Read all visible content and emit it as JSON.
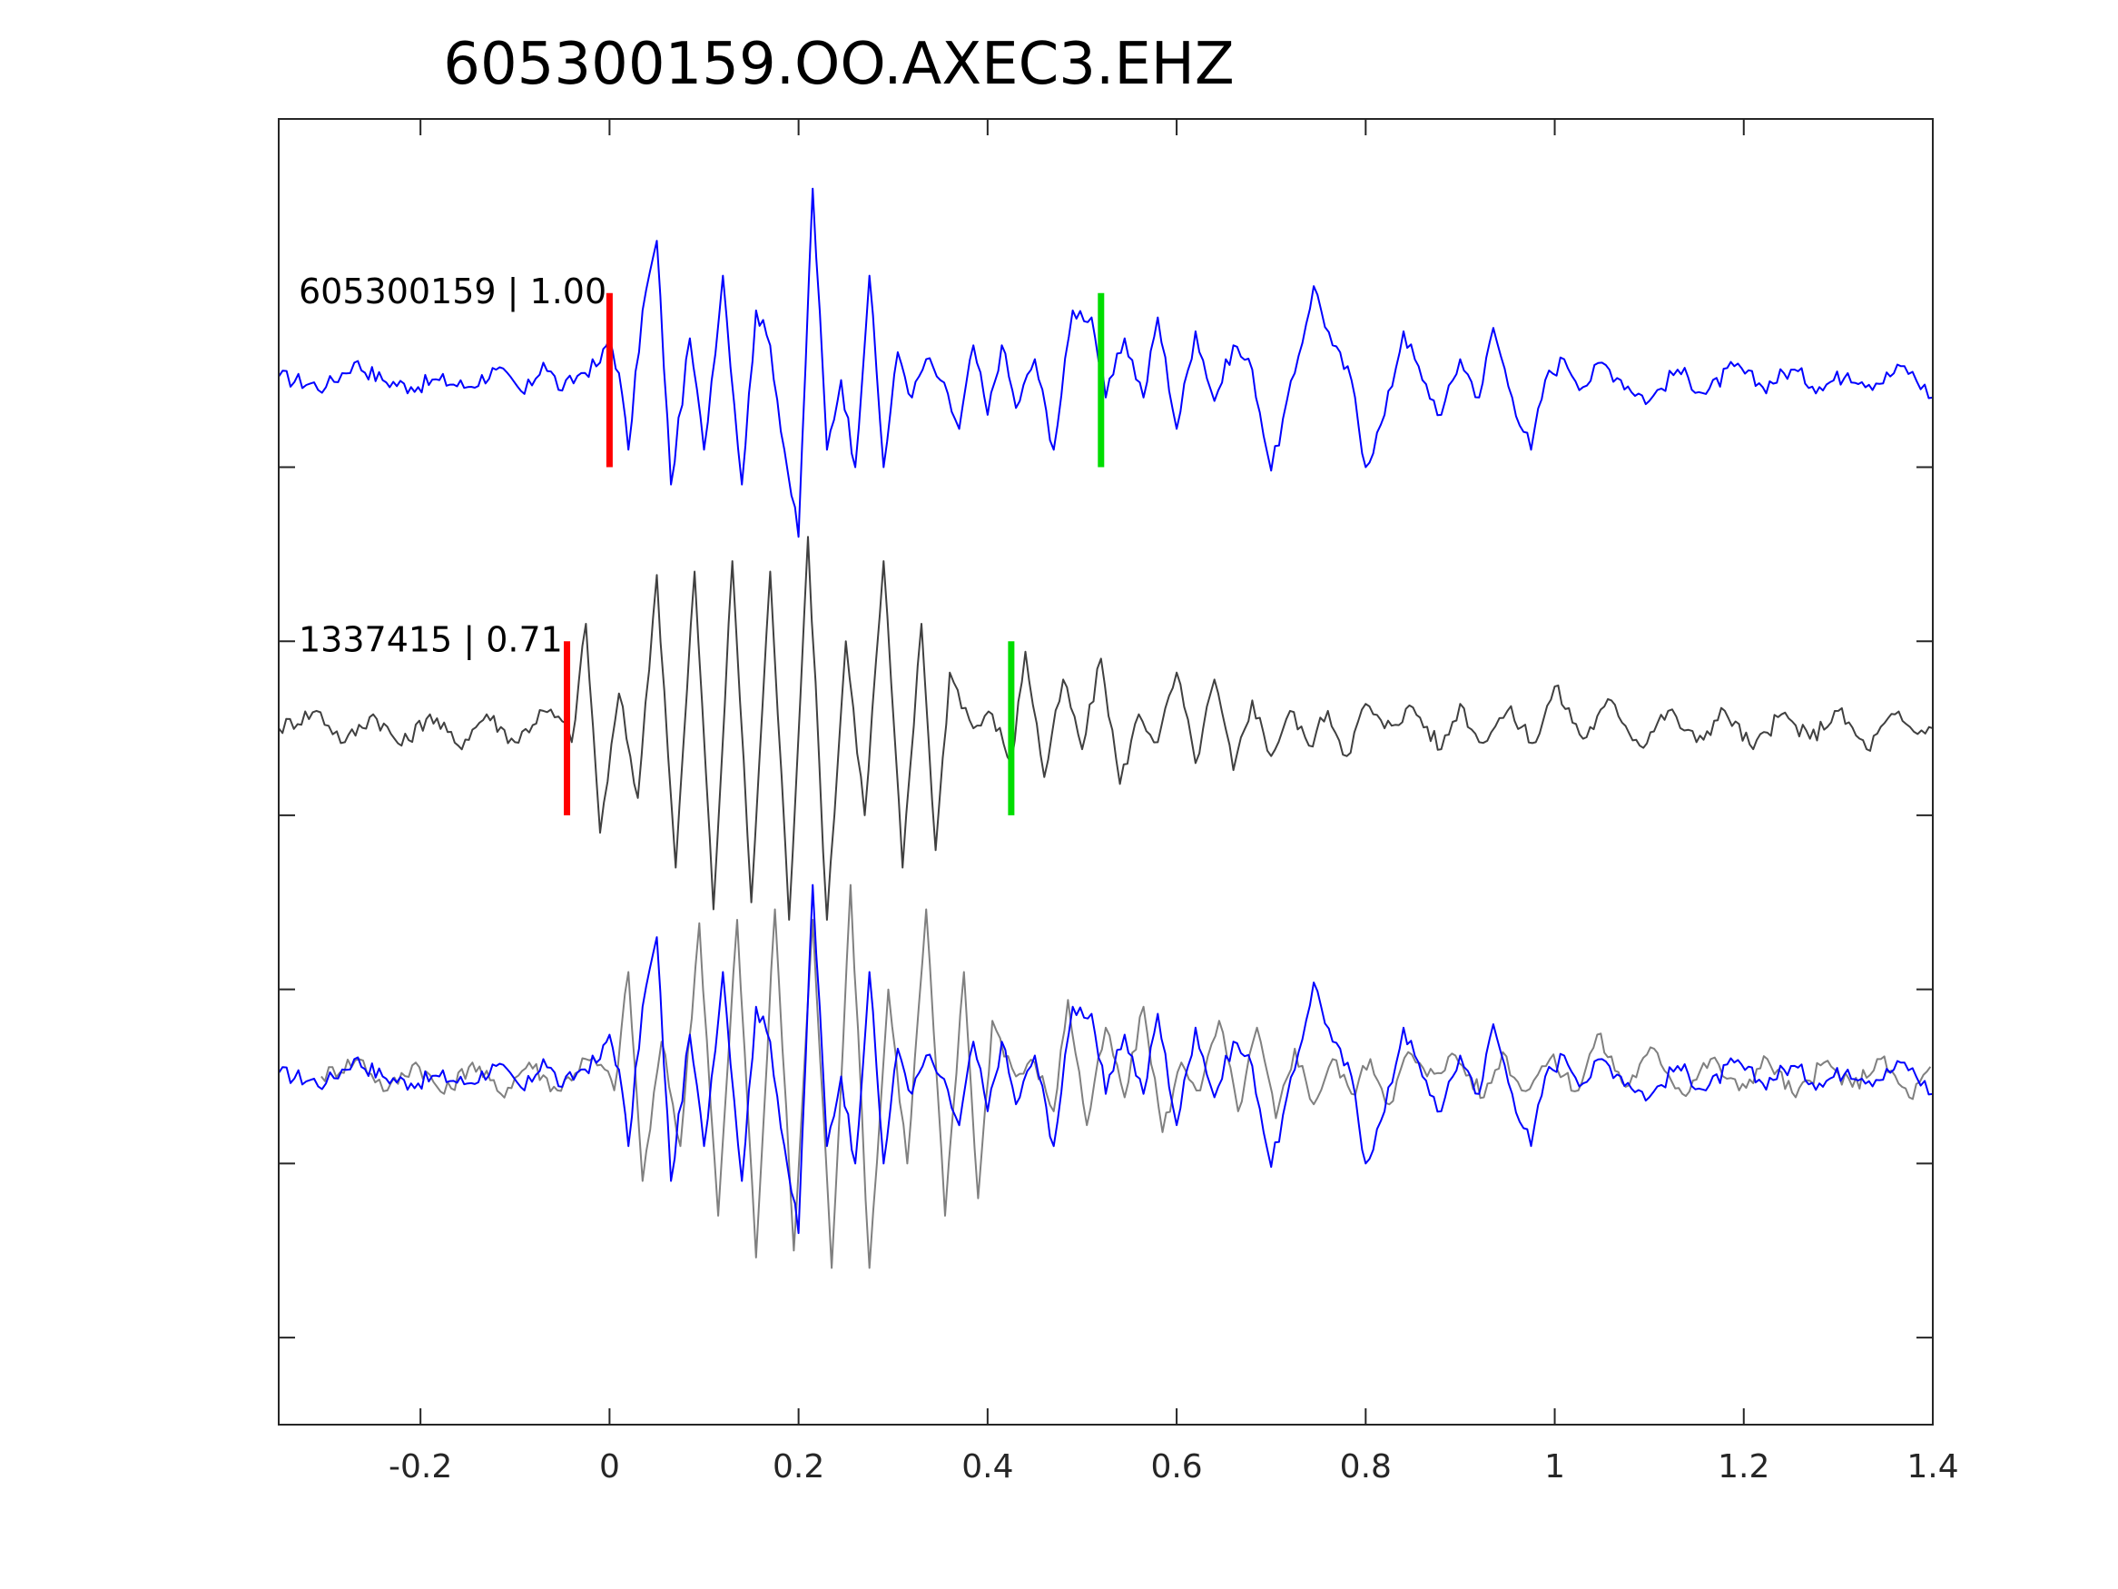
{
  "chart_data": {
    "type": "line",
    "title": "605300159.OO.AXEC3.EHZ",
    "xlabel": "",
    "ylabel": "",
    "xlim": [
      -0.35,
      1.4
    ],
    "ylim": [
      0,
      3.75
    ],
    "x_ticks": [
      "-0.2",
      "0",
      "0.2",
      "0.4",
      "0.6",
      "0.8",
      "1",
      "1.2",
      "1.4"
    ],
    "x_tick_values": [
      -0.2,
      0,
      0.2,
      0.4,
      0.6,
      0.8,
      1.0,
      1.2,
      1.4
    ],
    "y_tick_values": [
      0.25,
      0.75,
      1.25,
      1.75,
      2.25,
      2.75
    ],
    "grid": false,
    "colors": {
      "reference": "#0000ff",
      "match": "#404040",
      "match_overlay": "#808080",
      "p_pick": "#ff0000",
      "s_pick": "#00dd00"
    },
    "traces": [
      {
        "label": "605300159 | 1.00",
        "baseline": 3.0,
        "color": "#0000ff",
        "p_pick": 0.0,
        "s_pick": 0.52,
        "pick_half_height": 0.25,
        "points": [
          [
            -0.35,
            0.01
          ],
          [
            -0.3,
            -0.02
          ],
          [
            -0.27,
            0.05
          ],
          [
            -0.24,
            0.0
          ],
          [
            -0.21,
            -0.02
          ],
          [
            -0.18,
            0.0
          ],
          [
            -0.15,
            -0.02
          ],
          [
            -0.12,
            0.03
          ],
          [
            -0.09,
            -0.04
          ],
          [
            -0.07,
            0.05
          ],
          [
            -0.05,
            -0.03
          ],
          [
            -0.03,
            0.02
          ],
          [
            -0.01,
            0.05
          ],
          [
            0.0,
            0.12
          ],
          [
            0.01,
            0.02
          ],
          [
            0.02,
            -0.2
          ],
          [
            0.035,
            0.2
          ],
          [
            0.05,
            0.4
          ],
          [
            0.065,
            -0.3
          ],
          [
            0.085,
            0.12
          ],
          [
            0.1,
            -0.2
          ],
          [
            0.12,
            0.3
          ],
          [
            0.14,
            -0.3
          ],
          [
            0.155,
            0.2
          ],
          [
            0.17,
            0.1
          ],
          [
            0.185,
            -0.2
          ],
          [
            0.2,
            -0.45
          ],
          [
            0.215,
            0.55
          ],
          [
            0.23,
            -0.2
          ],
          [
            0.245,
            0.0
          ],
          [
            0.26,
            -0.25
          ],
          [
            0.275,
            0.3
          ],
          [
            0.29,
            -0.25
          ],
          [
            0.305,
            0.08
          ],
          [
            0.32,
            -0.05
          ],
          [
            0.335,
            0.06
          ],
          [
            0.35,
            0.0
          ],
          [
            0.37,
            -0.14
          ],
          [
            0.385,
            0.1
          ],
          [
            0.4,
            -0.1
          ],
          [
            0.415,
            0.1
          ],
          [
            0.43,
            -0.08
          ],
          [
            0.45,
            0.06
          ],
          [
            0.47,
            -0.2
          ],
          [
            0.49,
            0.2
          ],
          [
            0.51,
            0.18
          ],
          [
            0.525,
            -0.05
          ],
          [
            0.545,
            0.12
          ],
          [
            0.565,
            -0.05
          ],
          [
            0.58,
            0.18
          ],
          [
            0.6,
            -0.14
          ],
          [
            0.62,
            0.14
          ],
          [
            0.64,
            -0.06
          ],
          [
            0.66,
            0.1
          ],
          [
            0.68,
            0.03
          ],
          [
            0.7,
            -0.26
          ],
          [
            0.725,
            0.02
          ],
          [
            0.745,
            0.27
          ],
          [
            0.765,
            0.1
          ],
          [
            0.785,
            0.0
          ],
          [
            0.8,
            -0.25
          ],
          [
            0.82,
            -0.1
          ],
          [
            0.84,
            0.14
          ],
          [
            0.86,
            0.0
          ],
          [
            0.88,
            -0.1
          ],
          [
            0.9,
            0.06
          ],
          [
            0.92,
            -0.05
          ],
          [
            0.935,
            0.15
          ],
          [
            0.955,
            -0.05
          ],
          [
            0.975,
            -0.2
          ],
          [
            0.99,
            0.0
          ],
          [
            1.01,
            0.06
          ],
          [
            1.03,
            -0.02
          ],
          [
            1.05,
            0.05
          ],
          [
            1.07,
            0.0
          ],
          [
            1.1,
            -0.06
          ],
          [
            1.13,
            0.03
          ],
          [
            1.16,
            -0.04
          ],
          [
            1.19,
            0.04
          ],
          [
            1.22,
            -0.02
          ],
          [
            1.25,
            0.03
          ],
          [
            1.28,
            -0.02
          ],
          [
            1.31,
            0.02
          ],
          [
            1.34,
            -0.01
          ],
          [
            1.37,
            0.04
          ],
          [
            1.4,
            -0.05
          ]
        ]
      },
      {
        "label": "1337415 | 0.71",
        "baseline": 2.0,
        "color": "#404040",
        "p_pick": -0.045,
        "s_pick": 0.425,
        "pick_half_height": 0.25,
        "points": [
          [
            -0.35,
            0.0
          ],
          [
            -0.31,
            0.05
          ],
          [
            -0.28,
            -0.04
          ],
          [
            -0.25,
            0.04
          ],
          [
            -0.22,
            -0.05
          ],
          [
            -0.19,
            0.04
          ],
          [
            -0.16,
            -0.05
          ],
          [
            -0.13,
            0.04
          ],
          [
            -0.1,
            -0.04
          ],
          [
            -0.07,
            0.05
          ],
          [
            -0.05,
            0.02
          ],
          [
            -0.04,
            -0.04
          ],
          [
            -0.025,
            0.3
          ],
          [
            -0.01,
            -0.3
          ],
          [
            0.01,
            0.1
          ],
          [
            0.03,
            -0.2
          ],
          [
            0.05,
            0.44
          ],
          [
            0.07,
            -0.4
          ],
          [
            0.09,
            0.45
          ],
          [
            0.11,
            -0.52
          ],
          [
            0.13,
            0.48
          ],
          [
            0.15,
            -0.5
          ],
          [
            0.17,
            0.45
          ],
          [
            0.19,
            -0.55
          ],
          [
            0.21,
            0.55
          ],
          [
            0.23,
            -0.55
          ],
          [
            0.25,
            0.25
          ],
          [
            0.27,
            -0.25
          ],
          [
            0.29,
            0.48
          ],
          [
            0.31,
            -0.4
          ],
          [
            0.33,
            0.3
          ],
          [
            0.345,
            -0.35
          ],
          [
            0.36,
            0.16
          ],
          [
            0.385,
            0.0
          ],
          [
            0.405,
            0.04
          ],
          [
            0.425,
            -0.1
          ],
          [
            0.44,
            0.22
          ],
          [
            0.46,
            -0.14
          ],
          [
            0.48,
            0.14
          ],
          [
            0.5,
            -0.06
          ],
          [
            0.52,
            0.2
          ],
          [
            0.54,
            -0.16
          ],
          [
            0.56,
            0.04
          ],
          [
            0.58,
            -0.04
          ],
          [
            0.6,
            0.16
          ],
          [
            0.62,
            -0.1
          ],
          [
            0.64,
            0.14
          ],
          [
            0.66,
            -0.12
          ],
          [
            0.68,
            0.08
          ],
          [
            0.7,
            -0.08
          ],
          [
            0.72,
            0.05
          ],
          [
            0.74,
            -0.05
          ],
          [
            0.76,
            0.05
          ],
          [
            0.78,
            -0.08
          ],
          [
            0.8,
            0.07
          ],
          [
            0.82,
            0.0
          ],
          [
            0.85,
            0.06
          ],
          [
            0.88,
            -0.06
          ],
          [
            0.9,
            0.07
          ],
          [
            0.92,
            -0.04
          ],
          [
            0.95,
            0.05
          ],
          [
            0.98,
            -0.04
          ],
          [
            1.0,
            0.12
          ],
          [
            1.03,
            -0.03
          ],
          [
            1.06,
            0.08
          ],
          [
            1.09,
            -0.05
          ],
          [
            1.12,
            0.05
          ],
          [
            1.15,
            -0.04
          ],
          [
            1.18,
            0.05
          ],
          [
            1.21,
            -0.06
          ],
          [
            1.24,
            0.04
          ],
          [
            1.27,
            -0.03
          ],
          [
            1.3,
            0.05
          ],
          [
            1.33,
            -0.06
          ],
          [
            1.36,
            0.04
          ],
          [
            1.38,
            -0.01
          ],
          [
            1.4,
            0.0
          ]
        ]
      }
    ],
    "overlay": {
      "baseline": 1.0,
      "series": [
        {
          "color": "#808080",
          "source_trace": 1,
          "time_shift": 0.045
        },
        {
          "color": "#0000ff",
          "source_trace": 0,
          "time_shift": 0.0
        }
      ]
    }
  }
}
